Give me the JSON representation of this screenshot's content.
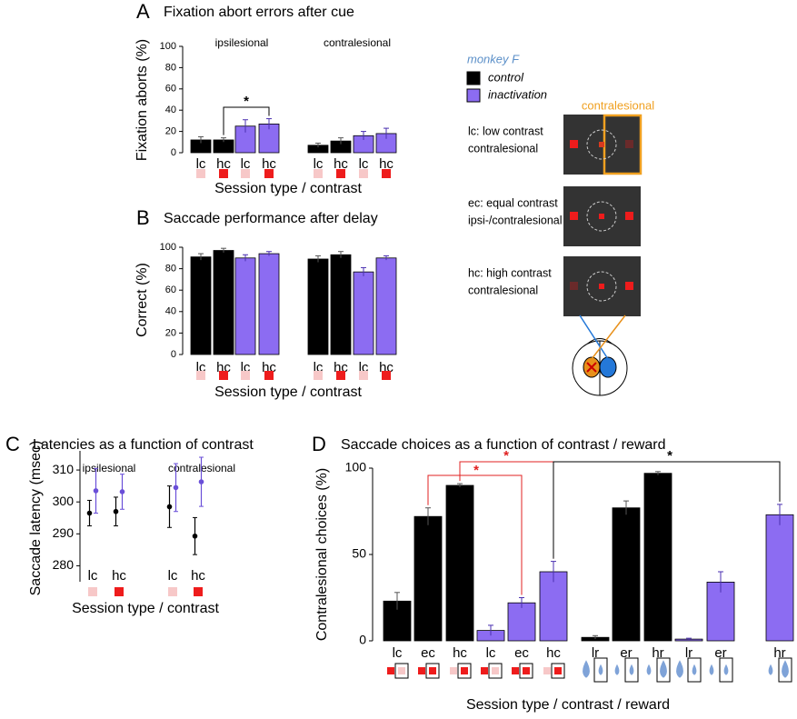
{
  "chart_data": [
    {
      "type": "bar",
      "panel": "A",
      "title": "Fixation abort errors after cue",
      "ylabel": "Fixation aborts (%)",
      "xlabel": "Session type / contrast",
      "groups": [
        "ipsilesional",
        "contralesional"
      ],
      "categories": [
        "lc",
        "hc",
        "lc",
        "hc",
        "lc",
        "hc",
        "lc",
        "hc"
      ],
      "values": [
        12,
        12,
        25,
        27,
        7,
        11,
        16,
        18
      ],
      "errors": [
        3,
        2,
        6,
        5,
        2,
        3,
        4,
        5
      ],
      "colors": [
        "#000000",
        "#000000",
        "#8c6cf2",
        "#8c6cf2",
        "#000000",
        "#000000",
        "#8c6cf2",
        "#8c6cf2"
      ],
      "ylim": [
        0,
        100
      ],
      "yticks": [
        0,
        20,
        40,
        60,
        80,
        100
      ],
      "significance": [
        {
          "label": "*",
          "color": "#000000"
        }
      ]
    },
    {
      "type": "bar",
      "panel": "B",
      "title": "Saccade performance after delay",
      "ylabel": "Correct (%)",
      "xlabel": "Session type / contrast",
      "categories": [
        "lc",
        "hc",
        "lc",
        "hc",
        "lc",
        "hc",
        "lc",
        "hc"
      ],
      "values": [
        91,
        97,
        90,
        94,
        89,
        93,
        77,
        90
      ],
      "errors": [
        3,
        2,
        3,
        2,
        3,
        3,
        4,
        2
      ],
      "colors": [
        "#000000",
        "#000000",
        "#8c6cf2",
        "#8c6cf2",
        "#000000",
        "#000000",
        "#8c6cf2",
        "#8c6cf2"
      ],
      "ylim": [
        0,
        100
      ],
      "yticks": [
        0,
        20,
        40,
        60,
        80,
        100
      ]
    },
    {
      "type": "errorpoint",
      "panel": "C",
      "title": "Latencies as a function of contrast",
      "ylabel": "Saccade latency (msec)",
      "xlabel": "Session type / contrast",
      "groups": [
        "ipsilesional",
        "contralesional"
      ],
      "categories": [
        "lc",
        "hc",
        "lc",
        "hc"
      ],
      "series": [
        {
          "color": "#000000",
          "values": [
            296.5,
            297,
            298.5,
            289.3
          ],
          "errors": [
            4,
            4.5,
            6.5,
            5.8
          ]
        },
        {
          "color": "#6a4fd8",
          "values": [
            303.5,
            303.2,
            304.5,
            306.3
          ],
          "errors": [
            7,
            5.5,
            7.5,
            7.7
          ]
        }
      ],
      "ylim": [
        275,
        316
      ],
      "yticks": [
        280,
        290,
        300,
        310
      ]
    },
    {
      "type": "bar",
      "panel": "D",
      "title": "Saccade choices as a function of contrast / reward",
      "ylabel": "Contralesional choices (%)",
      "xlabel": "Session type / contrast / reward",
      "categories": [
        "lc",
        "ec",
        "hc",
        "lc",
        "ec",
        "hc",
        "lr",
        "er",
        "hr",
        "lr",
        "er",
        "hr"
      ],
      "values": [
        23,
        72,
        90,
        6,
        22,
        40,
        2,
        77,
        97,
        1,
        34,
        73
      ],
      "errors": [
        5,
        5,
        1,
        3,
        3,
        6,
        1,
        4,
        1,
        0.5,
        6,
        6
      ],
      "colors": [
        "#000000",
        "#000000",
        "#000000",
        "#8c6cf2",
        "#8c6cf2",
        "#8c6cf2",
        "#000000",
        "#000000",
        "#000000",
        "#8c6cf2",
        "#8c6cf2",
        "#8c6cf2"
      ],
      "ylim": [
        0,
        100
      ],
      "yticks": [
        0,
        50,
        100
      ],
      "significance": [
        {
          "label": "*",
          "color": "#e02020"
        },
        {
          "label": "*",
          "color": "#e02020"
        },
        {
          "label": "*",
          "color": "#000000"
        }
      ]
    }
  ],
  "diagram": {
    "legend": {
      "title": "monkey F",
      "items": [
        {
          "label": "control",
          "color": "#000000"
        },
        {
          "label": "inactivation",
          "color": "#8c6cf2"
        }
      ]
    },
    "highlight": "contralesional",
    "screens": [
      {
        "lines": [
          "lc: low contrast",
          "contralesional"
        ]
      },
      {
        "lines": [
          "ec: equal contrast",
          "ipsi-/contralesional"
        ]
      },
      {
        "lines": [
          "hc: high contrast",
          "contralesional"
        ]
      }
    ]
  }
}
